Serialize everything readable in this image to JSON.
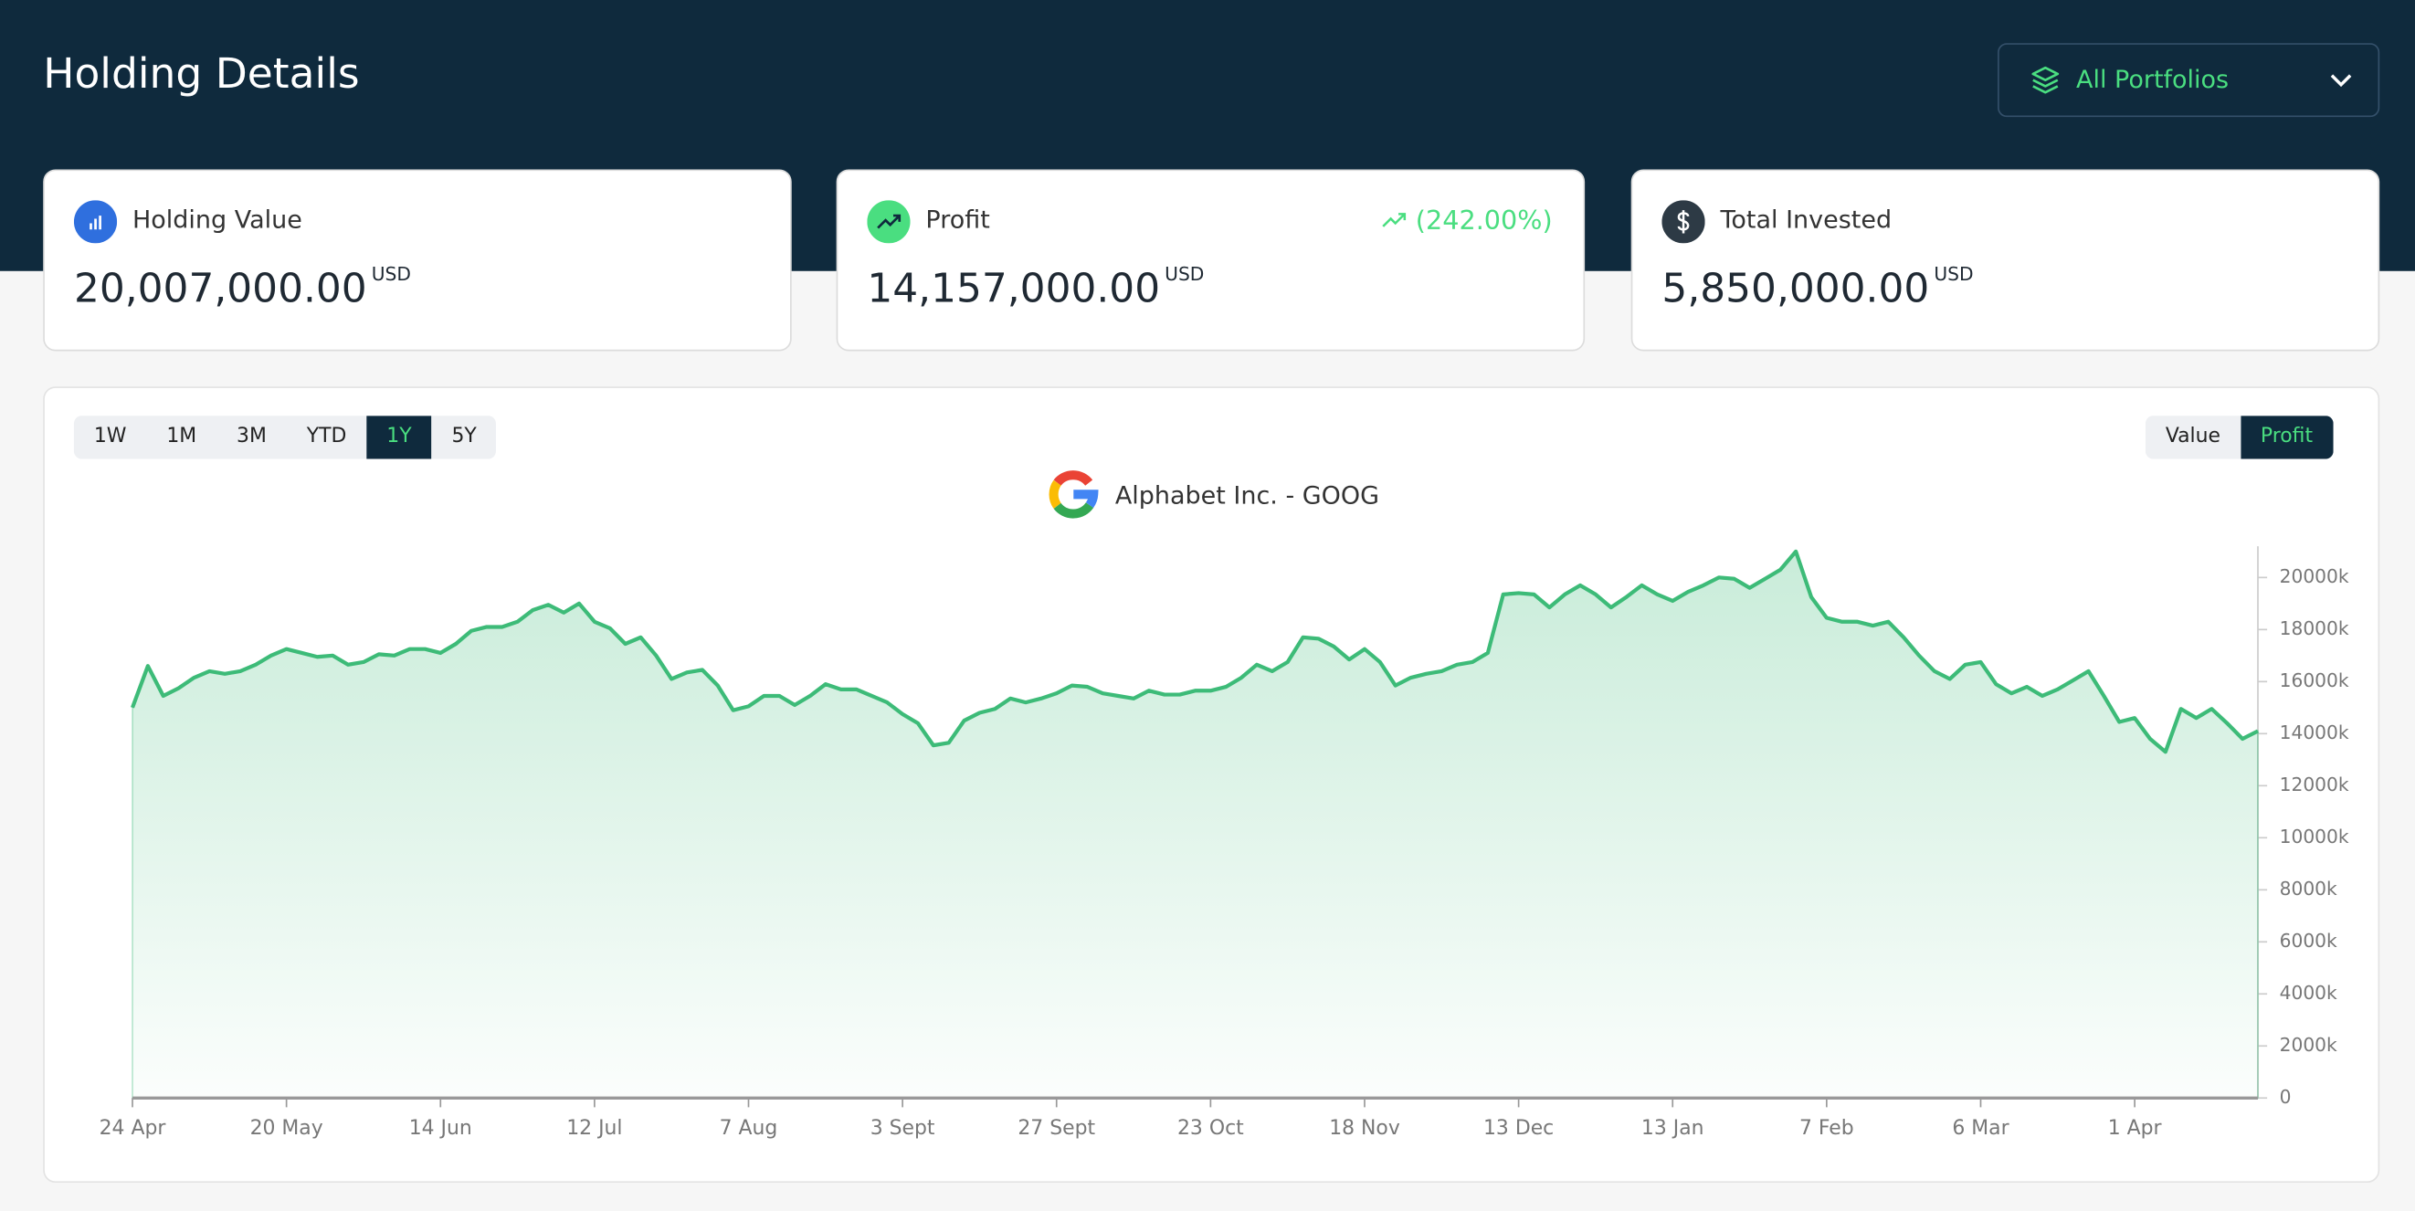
{
  "header": {
    "title": "Holding Details",
    "portfolio_select": "All Portfolios"
  },
  "cards": [
    {
      "label": "Holding Value",
      "value": "20,007,000.00",
      "unit": "USD"
    },
    {
      "label": "Profit",
      "value": "14,157,000.00",
      "unit": "USD",
      "change": "(242.00%)"
    },
    {
      "label": "Total Invested",
      "value": "5,850,000.00",
      "unit": "USD"
    }
  ],
  "chart_controls": {
    "periods": [
      "1W",
      "1M",
      "3M",
      "YTD",
      "1Y",
      "5Y"
    ],
    "active_period": "1Y",
    "modes": [
      "Value",
      "Profit"
    ],
    "active_mode": "Profit"
  },
  "chart_data": {
    "type": "area",
    "title": "Alphabet Inc. - GOOG",
    "color": "#3dbb78",
    "values": [
      15000,
      16600,
      15450,
      15750,
      16150,
      16400,
      16300,
      16400,
      16650,
      17000,
      17250,
      17100,
      16950,
      17000,
      16650,
      16750,
      17050,
      17000,
      17250,
      17250,
      17100,
      17450,
      17950,
      18100,
      18100,
      18300,
      18750,
      18950,
      18650,
      19000,
      18300,
      18050,
      17450,
      17700,
      17000,
      16100,
      16350,
      16450,
      15850,
      14900,
      15050,
      15450,
      15450,
      15100,
      15450,
      15900,
      15700,
      15700,
      15450,
      15200,
      14750,
      14400,
      13550,
      13650,
      14500,
      14800,
      14950,
      15350,
      15200,
      15350,
      15550,
      15850,
      15800,
      15550,
      15450,
      15350,
      15650,
      15500,
      15500,
      15650,
      15650,
      15800,
      16150,
      16650,
      16400,
      16750,
      17700,
      17650,
      17350,
      16850,
      17250,
      16750,
      15850,
      16150,
      16300,
      16400,
      16650,
      16750,
      17100,
      19350,
      19400,
      19350,
      18850,
      19350,
      19700,
      19350,
      18850,
      19250,
      19700,
      19350,
      19100,
      19450,
      19700,
      20000,
      19950,
      19600,
      19950,
      20300,
      21000,
      19250,
      18450,
      18300,
      18300,
      18150,
      18300,
      17700,
      17000,
      16400,
      16100,
      16650,
      16750,
      15900,
      15550,
      15800,
      15450,
      15700,
      16050,
      16400,
      15450,
      14450,
      14600,
      13800,
      13300,
      14950,
      14600,
      14950,
      14400,
      13800,
      14100
    ],
    "xlim": [
      0,
      138
    ],
    "xticks": [
      {
        "value": 0,
        "label": "24 Apr"
      },
      {
        "value": 10,
        "label": "20 May"
      },
      {
        "value": 20,
        "label": "14 Jun"
      },
      {
        "value": 30,
        "label": "12 Jul"
      },
      {
        "value": 40,
        "label": "7 Aug"
      },
      {
        "value": 50,
        "label": "3 Sept"
      },
      {
        "value": 60,
        "label": "27 Sept"
      },
      {
        "value": 70,
        "label": "23 Oct"
      },
      {
        "value": 80,
        "label": "18 Nov"
      },
      {
        "value": 90,
        "label": "13 Dec"
      },
      {
        "value": 100,
        "label": "13 Jan"
      },
      {
        "value": 110,
        "label": "7 Feb"
      },
      {
        "value": 120,
        "label": "6 Mar"
      },
      {
        "value": 130,
        "label": "1 Apr"
      }
    ],
    "ylim": [
      0,
      21200
    ],
    "yticks": [
      0,
      {
        "value": 2000,
        "label": "2000k"
      },
      {
        "value": 4000,
        "label": "4000k"
      },
      {
        "value": 6000,
        "label": "6000k"
      },
      {
        "value": 8000,
        "label": "8000k"
      },
      {
        "value": 10000,
        "label": "10000k"
      },
      {
        "value": 12000,
        "label": "12000k"
      },
      {
        "value": 14000,
        "label": "14000k"
      },
      {
        "value": 16000,
        "label": "16000k"
      },
      {
        "value": 18000,
        "label": "18000k"
      },
      {
        "value": 20000,
        "label": "20000k"
      }
    ]
  }
}
